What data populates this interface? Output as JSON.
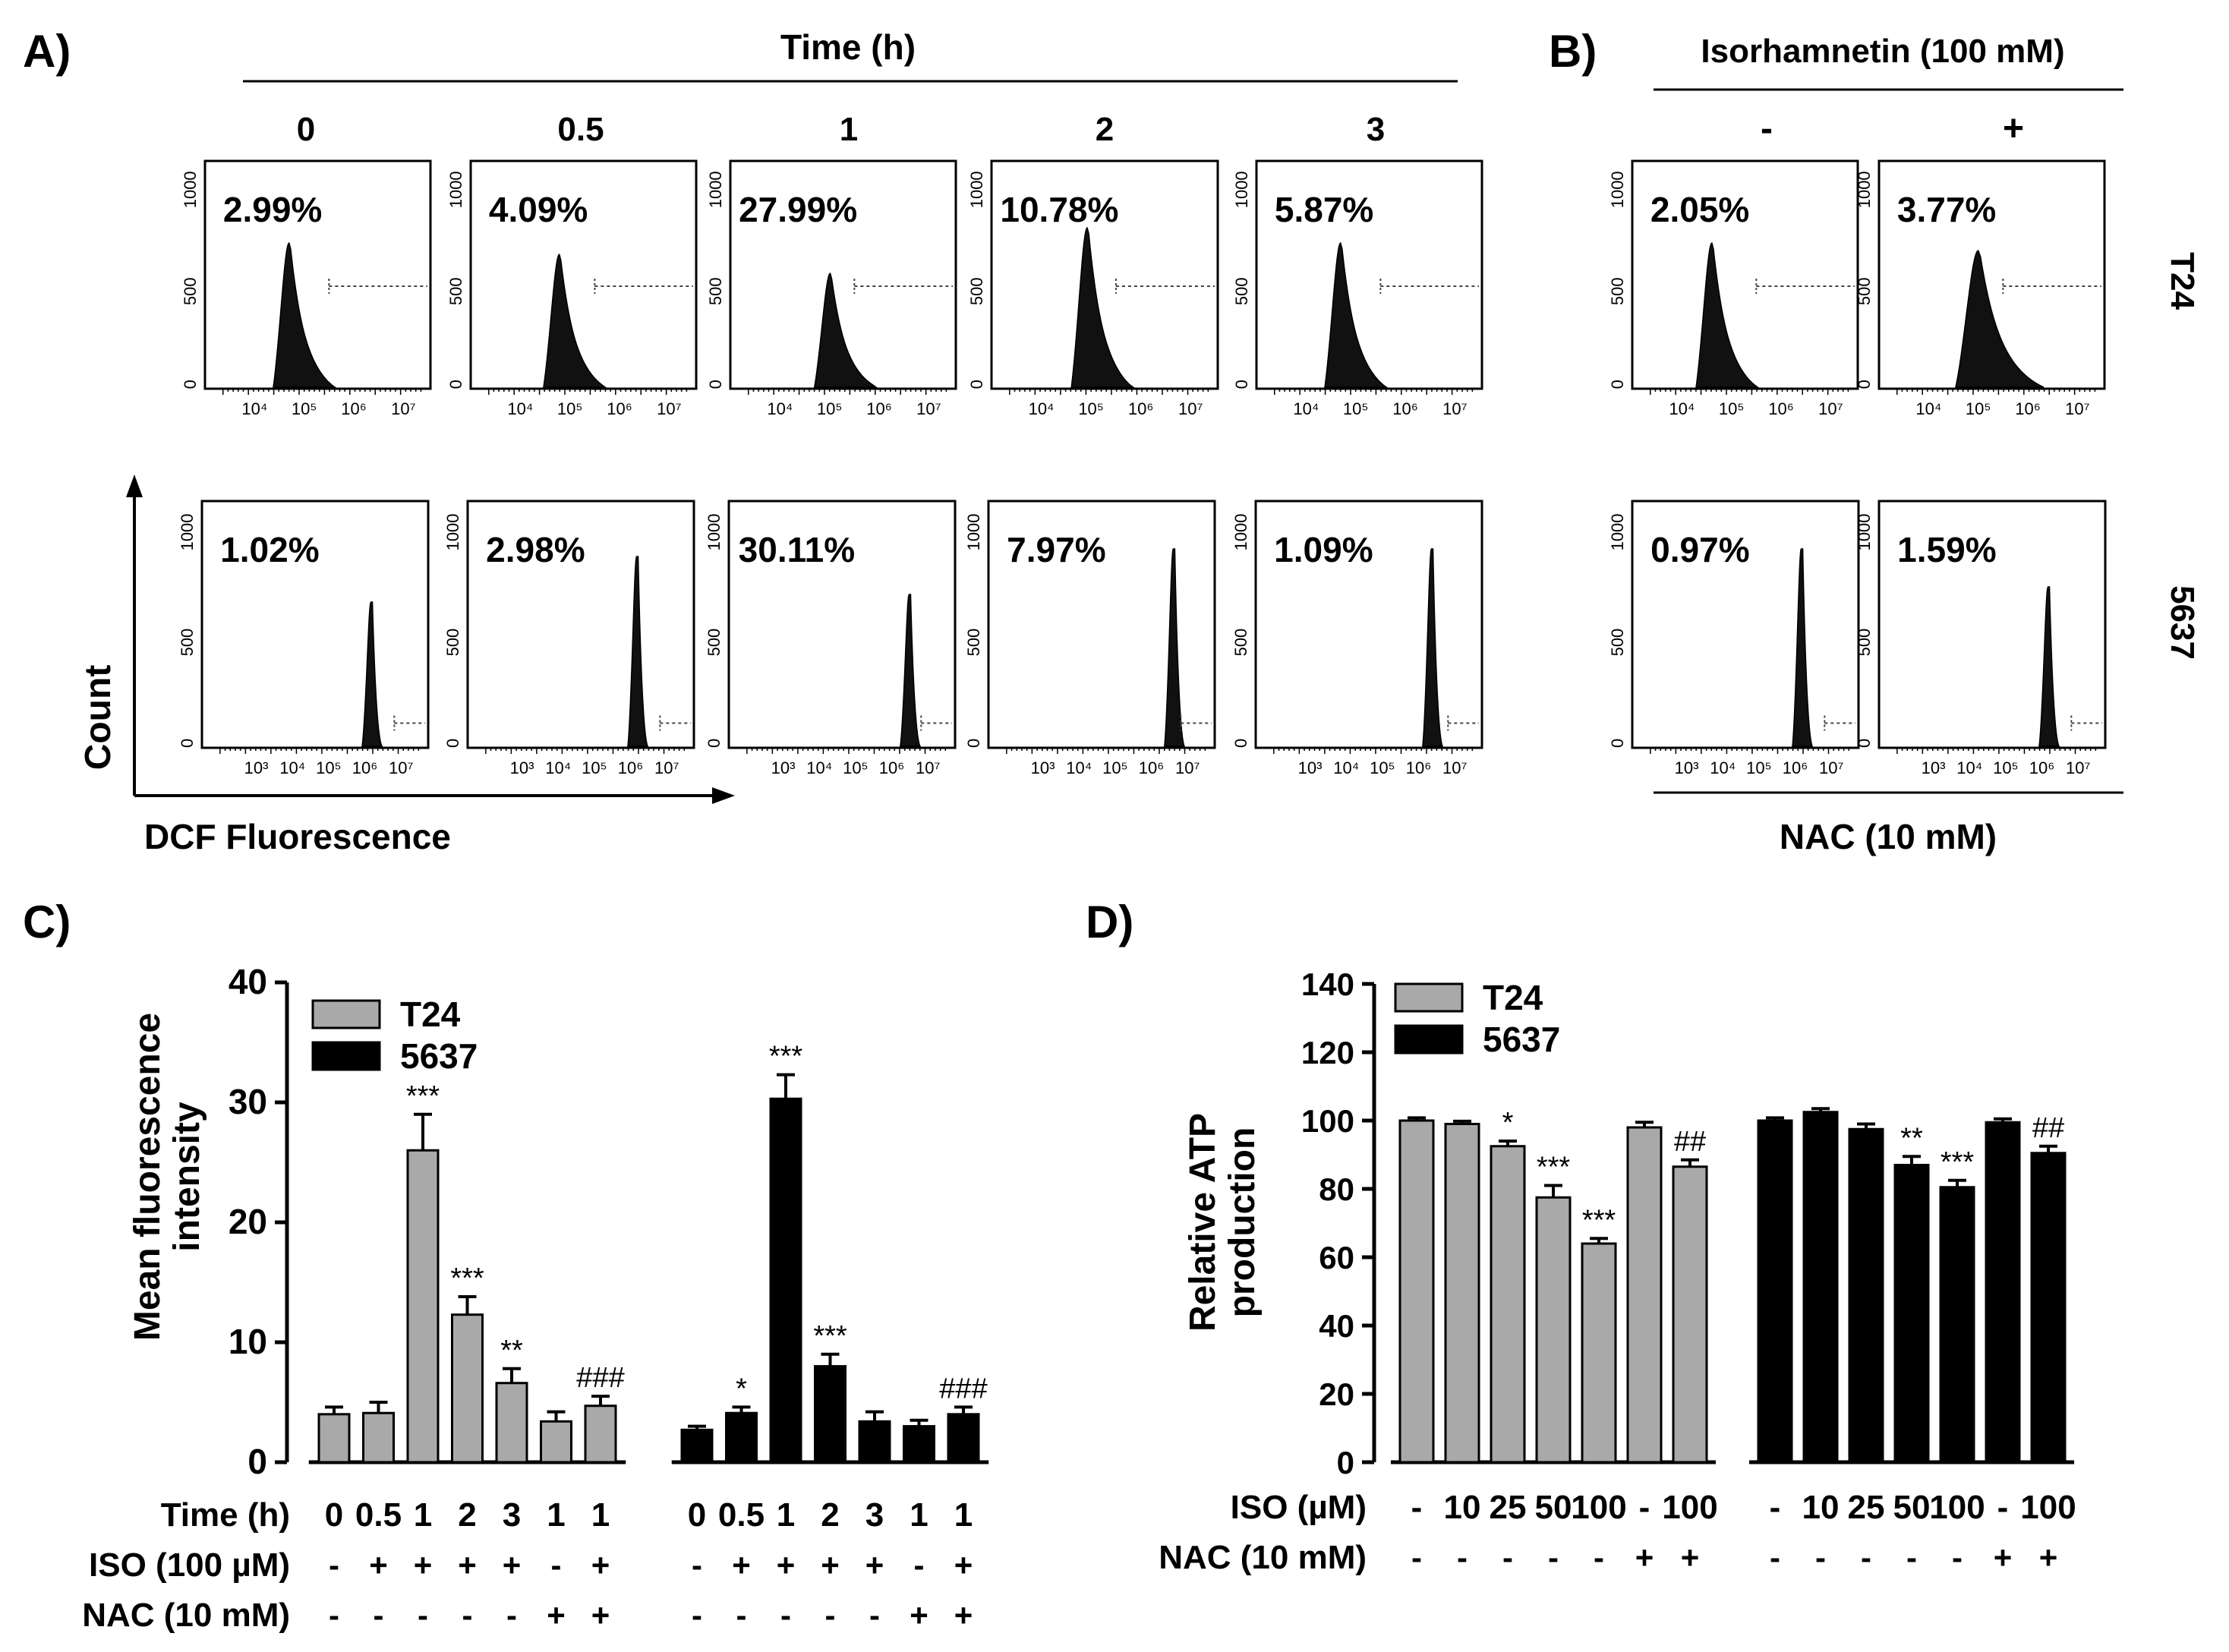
{
  "panel_letters": {
    "a": "A)",
    "b": "B)",
    "c": "C)",
    "d": "D)"
  },
  "histograms": {
    "time_title": "Time (h)",
    "time_points": [
      "0",
      "0.5",
      "1",
      "2",
      "3"
    ],
    "iso_title": "Isorhamnetin (100 mM)",
    "iso_signs": [
      "-",
      "+"
    ],
    "nac_label": "NAC (10 mM)",
    "cell_lines": [
      "T24",
      "5637"
    ],
    "y_ticks": [
      "0",
      "500",
      "1000"
    ],
    "x_axis_label": "DCF Fluorescence",
    "y_axis_label": "Count",
    "t24_x_ticks": [
      "10⁴",
      "10⁵",
      "10⁶",
      "10⁷"
    ],
    "p5637_x_ticks": [
      "10³",
      "10⁴",
      "10⁵",
      "10⁶",
      "10⁷"
    ],
    "t24_a": [
      "2.99%",
      "4.09%",
      "27.99%",
      "10.78%",
      "5.87%"
    ],
    "t24_b": [
      "2.05%",
      "3.77%"
    ],
    "p5637_a": [
      "1.02%",
      "2.98%",
      "30.11%",
      "7.97%",
      "1.09%"
    ],
    "p5637_b": [
      "0.97%",
      "1.59%"
    ]
  },
  "chart_data": [
    {
      "type": "bar",
      "panel": "C",
      "ylabel": "Mean fluorescence intensity",
      "ylim": [
        0,
        40
      ],
      "y_ticks": [
        0,
        10,
        20,
        30,
        40
      ],
      "legend": [
        "T24",
        "5637"
      ],
      "row_labels": [
        "Time (h)",
        "ISO (100 µM)",
        "NAC (10 mM)"
      ],
      "categories": [
        "0",
        "0.5",
        "1",
        "2",
        "3",
        "1",
        "1"
      ],
      "iso": [
        "-",
        "+",
        "+",
        "+",
        "+",
        "-",
        "+"
      ],
      "nac": [
        "-",
        "-",
        "-",
        "-",
        "-",
        "+",
        "+"
      ],
      "series": [
        {
          "name": "T24",
          "color": "#a9a9a9",
          "values": [
            4.0,
            4.1,
            26.0,
            12.3,
            6.6,
            3.4,
            4.7
          ],
          "errors": [
            0.6,
            0.9,
            3.0,
            1.5,
            1.2,
            0.8,
            0.8
          ],
          "annotations": [
            "",
            "",
            "***",
            "***",
            "**",
            "",
            "###"
          ]
        },
        {
          "name": "5637",
          "color": "#000000",
          "values": [
            2.7,
            4.1,
            30.3,
            8.0,
            3.4,
            3.0,
            4.0
          ],
          "errors": [
            0.3,
            0.5,
            2.0,
            1.0,
            0.8,
            0.5,
            0.6
          ],
          "annotations": [
            "",
            "*",
            "***",
            "***",
            "",
            "",
            "###"
          ]
        }
      ]
    },
    {
      "type": "bar",
      "panel": "D",
      "ylabel": "Relative ATP production",
      "ylim": [
        0,
        140
      ],
      "y_ticks": [
        0,
        20,
        40,
        60,
        80,
        100,
        120,
        140
      ],
      "legend": [
        "T24",
        "5637"
      ],
      "row_labels": [
        "ISO (µM)",
        "NAC (10 mM)"
      ],
      "iso": [
        "-",
        "10",
        "25",
        "50",
        "100",
        "-",
        "100"
      ],
      "nac": [
        "-",
        "-",
        "-",
        "-",
        "-",
        "+",
        "+"
      ],
      "series": [
        {
          "name": "T24",
          "color": "#a9a9a9",
          "values": [
            100,
            99,
            92.5,
            77.5,
            64,
            98,
            86.5
          ],
          "errors": [
            0.8,
            0.8,
            1.5,
            3.5,
            1.5,
            1.5,
            2.0
          ],
          "annotations": [
            "",
            "",
            "*",
            "***",
            "***",
            "",
            "##"
          ]
        },
        {
          "name": "5637",
          "color": "#000000",
          "values": [
            100,
            102.5,
            97.5,
            87,
            80.5,
            99.5,
            90.5
          ],
          "errors": [
            0.8,
            1.0,
            1.5,
            2.5,
            2.0,
            1.0,
            2.0
          ],
          "annotations": [
            "",
            "",
            "",
            "**",
            "***",
            "",
            "##"
          ]
        }
      ]
    }
  ]
}
